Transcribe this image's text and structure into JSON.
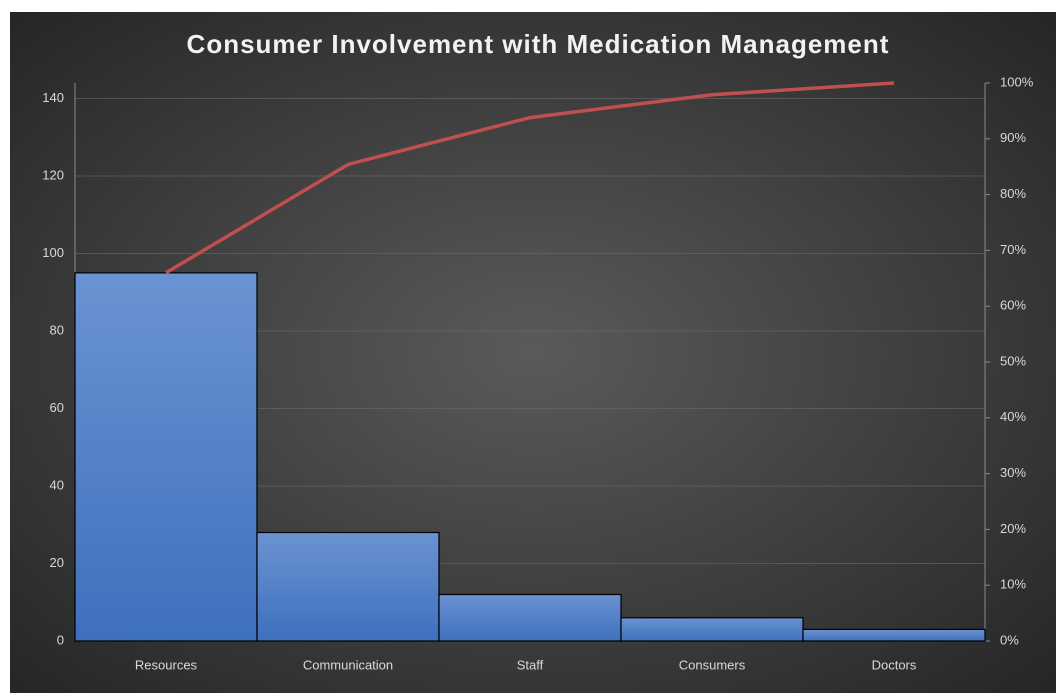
{
  "chart_data": {
    "type": "pareto",
    "title": "Consumer Involvement with Medication Management",
    "categories": [
      "Resources",
      "Communication",
      "Staff",
      "Consumers",
      "Doctors"
    ],
    "series": [
      {
        "type": "bar",
        "color": "#4a7cc4",
        "values": [
          95,
          28,
          12,
          6,
          3
        ]
      },
      {
        "type": "line",
        "color": "#c0504d",
        "axis": "y2",
        "values": [
          66,
          85.4,
          93.8,
          97.9,
          100
        ]
      }
    ],
    "ylim": [
      0,
      144
    ],
    "yticks": [
      0,
      20,
      40,
      60,
      80,
      100,
      120,
      140
    ],
    "y2lim": [
      0,
      100
    ],
    "y2ticks": [
      {
        "value": 0,
        "label": "0%"
      },
      {
        "value": 10,
        "label": "10%"
      },
      {
        "value": 20,
        "label": "20%"
      },
      {
        "value": 30,
        "label": "30%"
      },
      {
        "value": 40,
        "label": "40%"
      },
      {
        "value": 50,
        "label": "50%"
      },
      {
        "value": 60,
        "label": "60%"
      },
      {
        "value": 70,
        "label": "70%"
      },
      {
        "value": 80,
        "label": "80%"
      },
      {
        "value": 90,
        "label": "90%"
      },
      {
        "value": 100,
        "label": "100%"
      }
    ],
    "grid": true
  }
}
